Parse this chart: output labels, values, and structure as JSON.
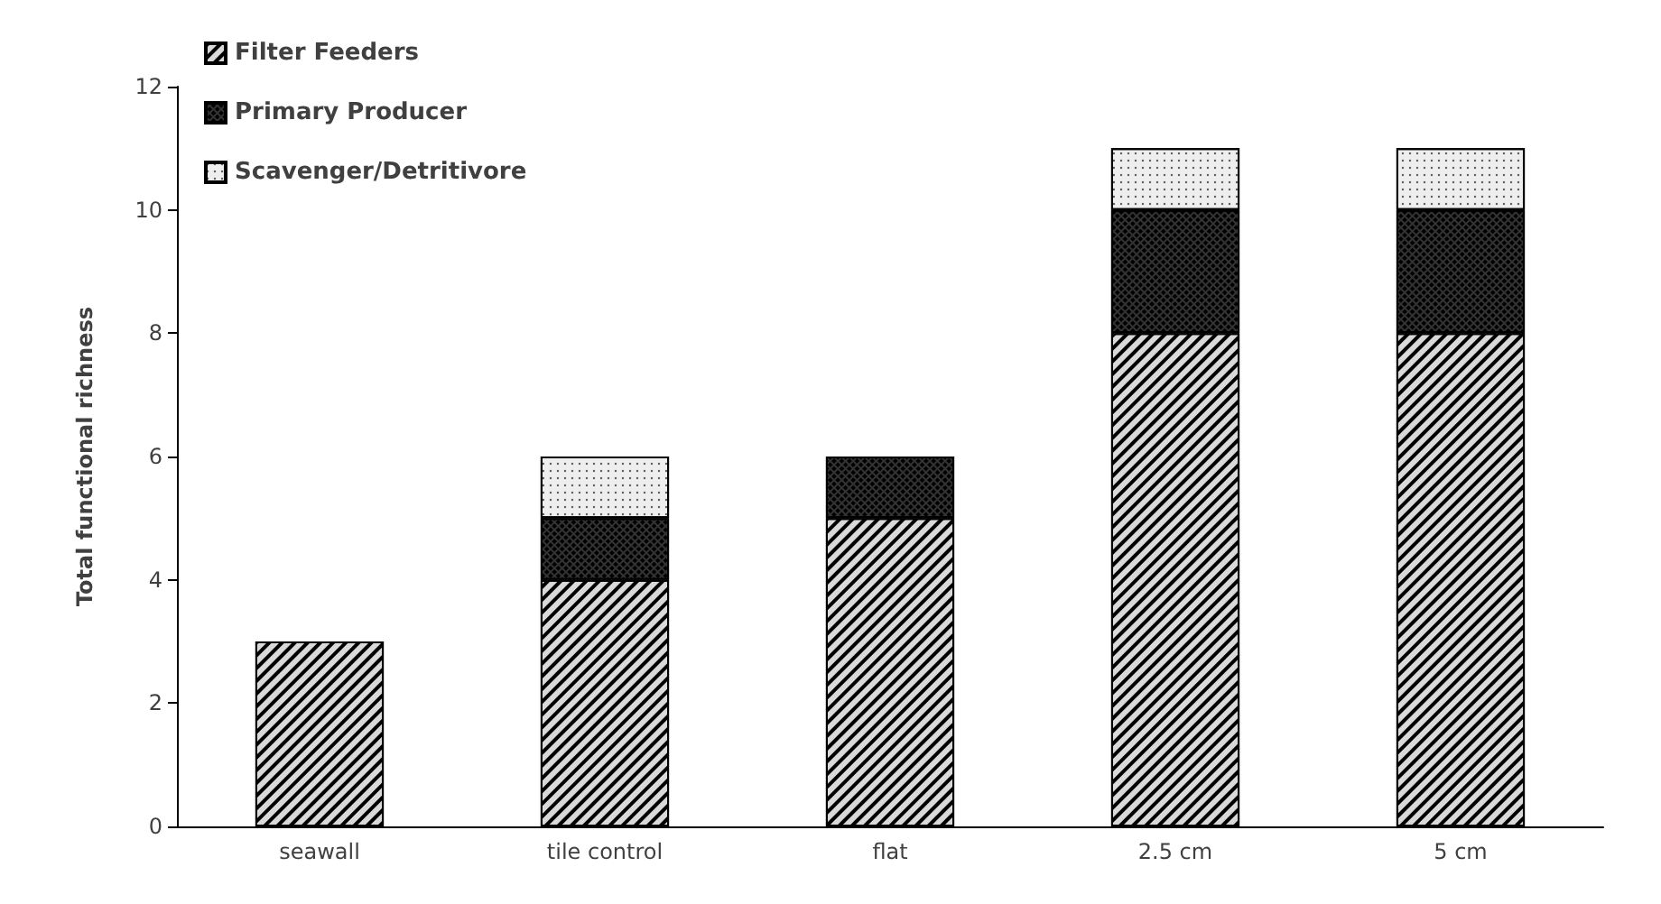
{
  "chart_data": {
    "type": "bar",
    "stacked": true,
    "ylabel": "Total functional richness",
    "categories": [
      "seawall",
      "tile control",
      "flat",
      "2.5 cm",
      "5 cm"
    ],
    "series": [
      {
        "name": "Filter Feeders",
        "color": "#d9d9d9",
        "values": [
          3,
          4,
          5,
          8,
          8
        ]
      },
      {
        "name": "Primary Producer",
        "color": "#333333",
        "values": [
          0,
          1,
          1,
          2,
          2
        ]
      },
      {
        "name": "Scavenger/Detritivore",
        "color": "#eeeeee",
        "values": [
          0,
          1,
          0,
          1,
          1
        ]
      }
    ],
    "ylim": [
      0,
      12
    ],
    "yticks": [
      0,
      2,
      4,
      6,
      8,
      10,
      12
    ],
    "grid": false,
    "legend": "top left"
  }
}
